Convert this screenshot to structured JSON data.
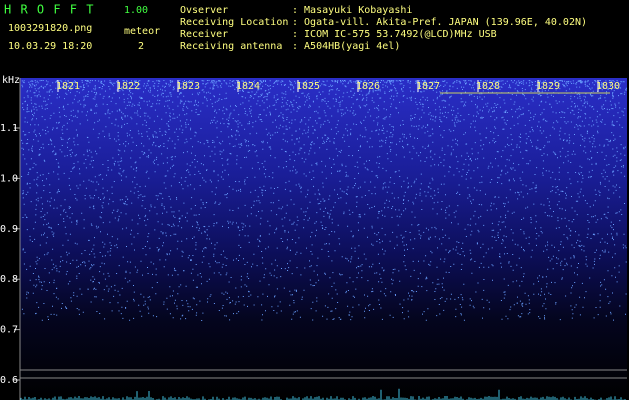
{
  "header": {
    "app": "H R O F F T",
    "version": "1.00",
    "file": "1003291820.png",
    "datetime": "10.03.29 18:20",
    "count_label": "meteor",
    "count": "2",
    "info": [
      {
        "label": "Ovserver",
        "value": ": Masayuki Kobayashi"
      },
      {
        "label": "Receiving Location",
        "value": ": Ogata-vill. Akita-Pref. JAPAN (139.96E, 40.02N)"
      },
      {
        "label": "Receiver",
        "value": ": ICOM IC-575 53.7492(@LCD)MHz USB"
      },
      {
        "label": "Receiving antenna",
        "value": ": A504HB(yagi 4el)"
      }
    ]
  },
  "axis": {
    "unit": "kHz",
    "ticks": [
      "1.1",
      "1.0",
      "0.9",
      "0.8",
      "0.7",
      "0.6"
    ]
  },
  "times": [
    "1821",
    "1822",
    "1823",
    "1824",
    "1825",
    "1826",
    "1827",
    "1828",
    "1829",
    "1830"
  ]
}
